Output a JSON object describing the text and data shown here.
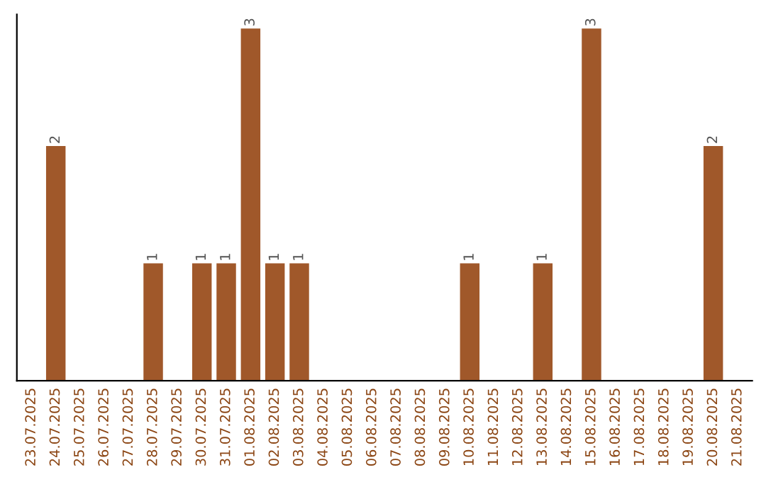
{
  "chart_data": {
    "type": "bar",
    "categories": [
      "23.07.2025",
      "24.07.2025",
      "25.07.2025",
      "26.07.2025",
      "27.07.2025",
      "28.07.2025",
      "29.07.2025",
      "30.07.2025",
      "31.07.2025",
      "01.08.2025",
      "02.08.2025",
      "03.08.2025",
      "04.08.2025",
      "05.08.2025",
      "06.08.2025",
      "07.08.2025",
      "08.08.2025",
      "09.08.2025",
      "10.08.2025",
      "11.08.2025",
      "12.08.2025",
      "13.08.2025",
      "14.08.2025",
      "15.08.2025",
      "16.08.2025",
      "17.08.2025",
      "18.08.2025",
      "19.08.2025",
      "20.08.2025",
      "21.08.2025"
    ],
    "series": [
      {
        "color": "#a0582a",
        "values": [
          0,
          2,
          0,
          0,
          0,
          1,
          0,
          1,
          1,
          3,
          1,
          1,
          0,
          0,
          0,
          0,
          0,
          0,
          1,
          0,
          0,
          1,
          0,
          3,
          0,
          0,
          0,
          0,
          2,
          0
        ],
        "value_labels": [
          null,
          "2",
          null,
          null,
          null,
          "1",
          null,
          "1",
          "1",
          "3",
          "1",
          "1",
          null,
          null,
          null,
          null,
          null,
          null,
          "1",
          null,
          null,
          "1",
          null,
          "3",
          null,
          null,
          null,
          null,
          "2",
          null
        ]
      }
    ],
    "tick_labels": "x",
    "grid": false,
    "legend": false
  }
}
